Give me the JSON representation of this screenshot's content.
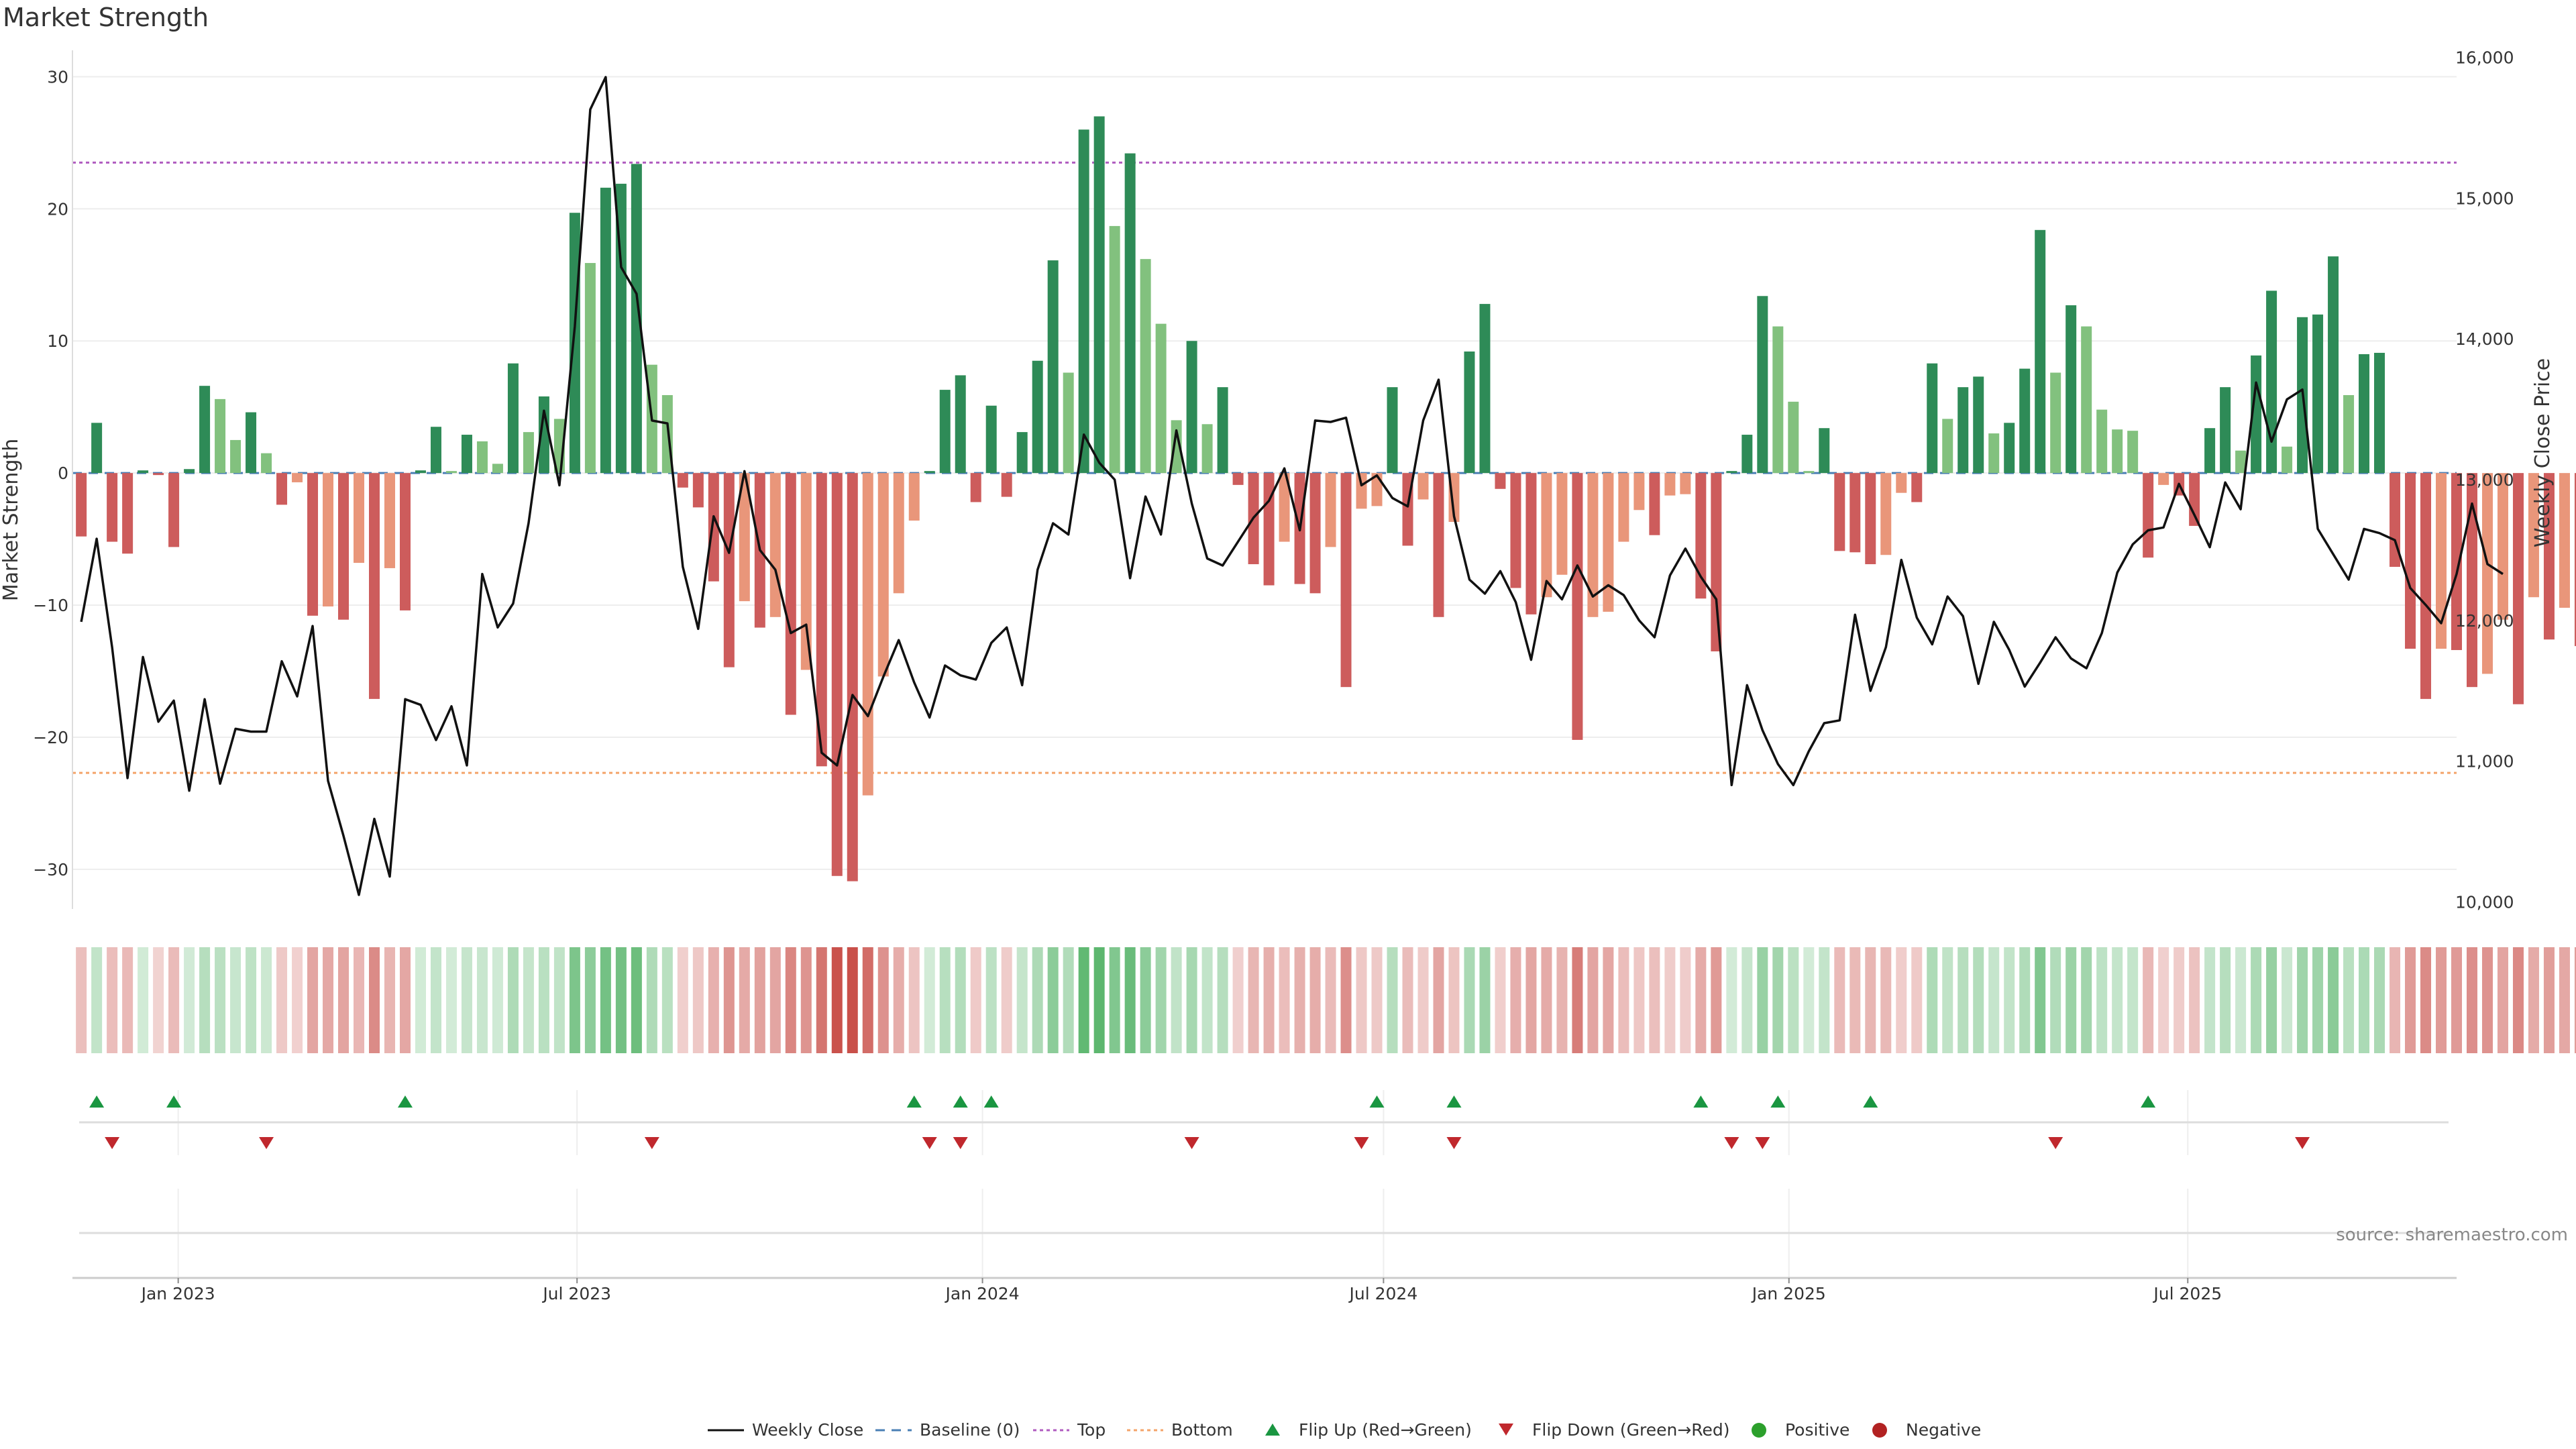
{
  "title": "Market Strength",
  "source": "source: sharemaestro.com",
  "colors": {
    "strong_pos": "#2e8b57",
    "weak_pos": "#82c17e",
    "strong_neg": "#cd5c5c",
    "weak_neg": "#e9967a",
    "close_line": "#111111",
    "baseline": "#4a7fb5",
    "top": "#b05cc0",
    "bottom": "#f4a46a",
    "flip_up": "#1a9641",
    "flip_down": "#c0282d",
    "positive_dot": "#2ca02c",
    "negative_dot": "#b22222"
  },
  "chart_data": {
    "type": "bar",
    "title": "Market Strength",
    "ylabel": "Market Strength",
    "y2label": "Weekly Close Price",
    "ylim": [
      -33,
      32
    ],
    "y2lim": [
      9950,
      16050
    ],
    "yticks": [
      30,
      20,
      10,
      0,
      -10,
      -20,
      -30
    ],
    "ytick_labels": [
      "30",
      "20",
      "10",
      "0",
      "−10",
      "−20",
      "−30"
    ],
    "y2ticks": [
      16000,
      15000,
      14000,
      13000,
      12000,
      11000,
      10000
    ],
    "y2tick_labels": [
      "16,000",
      "15,000",
      "14,000",
      "13,000",
      "12,000",
      "11,000",
      "10,000"
    ],
    "x_start": "2022-11-14",
    "x_end": "2025-10-31",
    "xticks": [
      {
        "date": "2023-01-01",
        "label": "Jan 2023"
      },
      {
        "date": "2023-07-01",
        "label": "Jul 2023"
      },
      {
        "date": "2024-01-01",
        "label": "Jan 2024"
      },
      {
        "date": "2024-07-01",
        "label": "Jul 2024"
      },
      {
        "date": "2025-01-01",
        "label": "Jan 2025"
      },
      {
        "date": "2025-07-01",
        "label": "Jul 2025"
      }
    ],
    "start_week": "2022-11-18",
    "values": [
      -4.8,
      3.8,
      -5.2,
      -6.1,
      0.2,
      -0.1,
      -5.6,
      0.3,
      6.6,
      5.6,
      2.5,
      4.6,
      1.5,
      -2.4,
      -0.7,
      -10.8,
      -10.1,
      -11.1,
      -6.8,
      -17.1,
      -7.2,
      -10.4,
      0.2,
      3.5,
      0.1,
      2.9,
      2.4,
      0.7,
      8.3,
      3.1,
      5.8,
      4.1,
      19.7,
      15.9,
      21.6,
      21.9,
      23.4,
      8.2,
      5.9,
      -1.1,
      -2.6,
      -8.2,
      -14.7,
      -9.7,
      -11.7,
      -10.9,
      -18.3,
      -14.9,
      -22.2,
      -30.5,
      -30.9,
      -24.4,
      -15.4,
      -9.1,
      -3.6,
      0.1,
      6.3,
      7.4,
      -2.2,
      5.1,
      -1.8,
      3.1,
      8.5,
      16.1,
      7.6,
      26.0,
      27.0,
      18.7,
      24.2,
      16.2,
      11.3,
      4.0,
      10.0,
      3.7,
      6.5,
      -0.9,
      -6.9,
      -8.5,
      -5.2,
      -8.4,
      -9.1,
      -5.6,
      -16.2,
      -2.7,
      -2.5,
      6.5,
      -5.5,
      -2.0,
      -10.9,
      -3.7,
      9.2,
      12.8,
      -1.2,
      -8.7,
      -10.7,
      -9.4,
      -7.7,
      -20.2,
      -10.9,
      -10.5,
      -5.2,
      -2.8,
      -4.7,
      -1.7,
      -1.6,
      -9.5,
      -13.5,
      0.1,
      2.9,
      13.4,
      11.1,
      5.4,
      0.1,
      3.4,
      -5.9,
      -6.0,
      -6.9,
      -6.2,
      -1.5,
      -2.2,
      8.3,
      4.1,
      6.5,
      7.3,
      3.0,
      3.8,
      7.9,
      18.4,
      7.6,
      12.7,
      11.1,
      4.8,
      3.3,
      3.2,
      -6.4,
      -0.9,
      -1.7,
      -4.0,
      3.4,
      6.5,
      1.7,
      8.9,
      13.8,
      2.0,
      11.8,
      12.0,
      16.4,
      5.9,
      9.0,
      9.1,
      -7.1,
      -13.3,
      -17.1,
      -13.3,
      -13.4,
      -16.2,
      -15.2,
      -11.1,
      -17.5,
      -9.4,
      -12.6,
      -10.2,
      -13.1
    ],
    "weekly_close": [
      11990,
      12580,
      11810,
      10880,
      11740,
      11280,
      11430,
      10790,
      11440,
      10840,
      11230,
      11210,
      11210,
      11710,
      11460,
      11960,
      10860,
      10470,
      10050,
      10590,
      10180,
      11440,
      11400,
      11150,
      11390,
      10970,
      12330,
      11950,
      12120,
      12690,
      13490,
      12960,
      14090,
      15630,
      15860,
      14510,
      14320,
      13420,
      13400,
      12380,
      11940,
      12740,
      12480,
      13060,
      12500,
      12360,
      11910,
      11970,
      11060,
      10970,
      11470,
      11320,
      11600,
      11860,
      11560,
      11310,
      11680,
      11610,
      11580,
      11840,
      11950,
      11540,
      12360,
      12690,
      12610,
      13320,
      13120,
      13000,
      12300,
      12880,
      12610,
      13350,
      12830,
      12440,
      12390,
      12560,
      12730,
      12850,
      13080,
      12640,
      13420,
      13410,
      13440,
      12960,
      13030,
      12870,
      12810,
      13420,
      13710,
      12740,
      12290,
      12190,
      12350,
      12130,
      11720,
      12280,
      12150,
      12390,
      12170,
      12250,
      12180,
      12000,
      11880,
      12320,
      12510,
      12310,
      12150,
      10830,
      11540,
      11220,
      10980,
      10830,
      11070,
      11270,
      11290,
      12040,
      11500,
      11810,
      12430,
      12020,
      11830,
      12170,
      12030,
      11550,
      11990,
      11790,
      11530,
      11700,
      11880,
      11730,
      11660,
      11910,
      12340,
      12540,
      12640,
      12660,
      12970,
      12750,
      12520,
      12980,
      12790,
      13690,
      13270,
      13570,
      13640,
      12650,
      12470,
      12290,
      12650,
      12620,
      12570,
      12230,
      12110,
      11980,
      12330,
      12830,
      12400,
      12330
    ],
    "top_level": 23.5,
    "bottom_level": -22.7,
    "flip_up_indices": [
      1,
      6,
      21,
      54,
      57,
      59,
      84,
      89,
      105,
      110,
      116,
      134
    ],
    "flip_down_indices": [
      2,
      12,
      37,
      55,
      57,
      72,
      83,
      89,
      107,
      109,
      128,
      144
    ],
    "legend": [
      {
        "label": "Weekly Close",
        "kind": "line"
      },
      {
        "label": "Baseline (0)",
        "kind": "dash"
      },
      {
        "label": "Top",
        "kind": "dot-top"
      },
      {
        "label": "Bottom",
        "kind": "dot-bottom"
      },
      {
        "label": "Flip Up (Red→Green)",
        "kind": "tri-up"
      },
      {
        "label": "Flip Down (Green→Red)",
        "kind": "tri-down"
      },
      {
        "label": "Positive",
        "kind": "dot-pos"
      },
      {
        "label": "Negative",
        "kind": "dot-neg"
      }
    ]
  }
}
